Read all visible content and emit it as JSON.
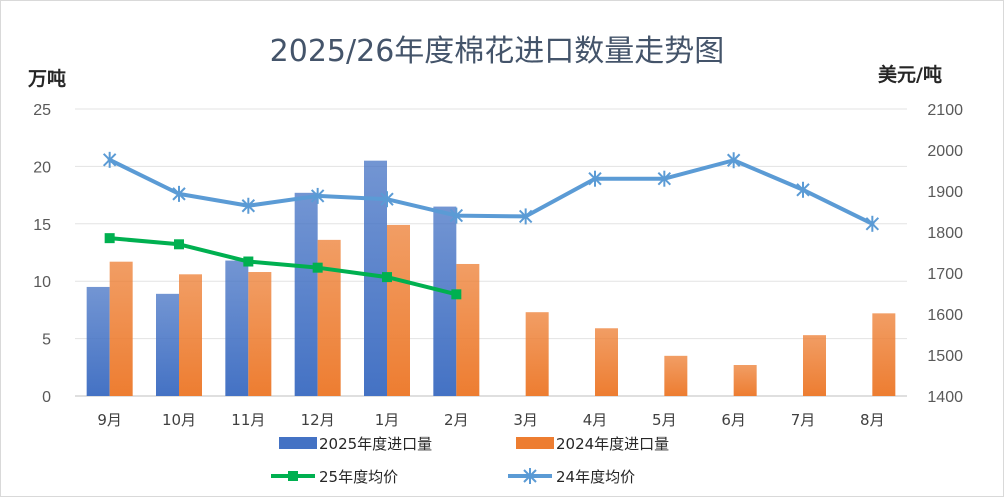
{
  "chart_data": {
    "type": "bar",
    "title": "2025/26年度棉花进口数量走势图",
    "left_axis_label": "万吨",
    "right_axis_label": "美元/吨",
    "categories": [
      "9月",
      "10月",
      "11月",
      "12月",
      "1月",
      "2月",
      "3月",
      "4月",
      "5月",
      "6月",
      "7月",
      "8月"
    ],
    "left_ylim": [
      0,
      25
    ],
    "left_ticks": [
      0,
      5,
      10,
      15,
      20,
      25
    ],
    "right_ylim": [
      1400,
      2100
    ],
    "right_ticks": [
      1400,
      1500,
      1600,
      1700,
      1800,
      1900,
      2000,
      2100
    ],
    "gridlines": true,
    "legend_position": "bottom",
    "series": [
      {
        "name": "2025年度进口量",
        "type": "bar",
        "axis": "left",
        "color": "#4472c4",
        "values": [
          9.5,
          8.9,
          11.8,
          17.7,
          20.5,
          16.5,
          null,
          null,
          null,
          null,
          null,
          null
        ]
      },
      {
        "name": "2024年度进口量",
        "type": "bar",
        "axis": "left",
        "color": "#ed7d31",
        "values": [
          11.7,
          10.6,
          10.8,
          13.6,
          14.9,
          11.5,
          7.3,
          5.9,
          3.5,
          2.7,
          5.3,
          7.2
        ]
      },
      {
        "name": "25年度均价",
        "type": "line",
        "axis": "right",
        "color": "#00b050",
        "marker": "square",
        "values": [
          1785,
          1770,
          1728,
          1713,
          1690,
          1648,
          null,
          null,
          null,
          null,
          null,
          null
        ]
      },
      {
        "name": "24年度均价",
        "type": "line",
        "axis": "right",
        "color": "#5b9bd5",
        "marker": "star",
        "values": [
          1976,
          1893,
          1864,
          1888,
          1880,
          1840,
          1838,
          1930,
          1930,
          1975,
          1903,
          1820
        ]
      }
    ]
  }
}
